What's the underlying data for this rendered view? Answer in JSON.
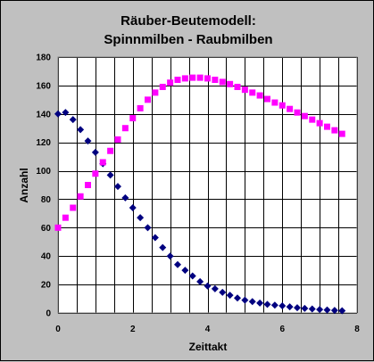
{
  "chart_data": {
    "type": "scatter",
    "title_lines": [
      "Räuber-Beutemodell:",
      "Spinnmilben - Raubmilben"
    ],
    "xlabel": "Zeittakt",
    "ylabel": "Anzahl",
    "xlim": [
      0,
      8
    ],
    "ylim": [
      0,
      180
    ],
    "xticks": [
      0,
      2,
      4,
      6,
      8
    ],
    "yticks": [
      0,
      20,
      40,
      60,
      80,
      100,
      120,
      140,
      160,
      180
    ],
    "x_minor_step": 0.5,
    "grid": true,
    "legend": "none",
    "series": [
      {
        "color": "#000080",
        "marker": "diamond",
        "x": [
          0.0,
          0.2,
          0.4,
          0.6,
          0.8,
          1.0,
          1.2,
          1.4,
          1.6,
          1.8,
          2.0,
          2.2,
          2.4,
          2.6,
          2.8,
          3.0,
          3.2,
          3.4,
          3.6,
          3.8,
          4.0,
          4.2,
          4.4,
          4.6,
          4.8,
          5.0,
          5.2,
          5.4,
          5.6,
          5.8,
          6.0,
          6.2,
          6.4,
          6.6,
          6.8,
          7.0,
          7.2,
          7.4,
          7.6
        ],
        "y": [
          140,
          141,
          136,
          129,
          121,
          113,
          105,
          97,
          89,
          81,
          74,
          67,
          60,
          53,
          46,
          40,
          34,
          30,
          26,
          22,
          19,
          17,
          14.5,
          12.5,
          10.5,
          9,
          8,
          7,
          6,
          5.5,
          5,
          4.3,
          3.7,
          3.2,
          2.8,
          2.4,
          2.1,
          1.8,
          1.6
        ]
      },
      {
        "color": "#ff00ff",
        "marker": "square",
        "x": [
          0.0,
          0.2,
          0.4,
          0.6,
          0.8,
          1.0,
          1.2,
          1.4,
          1.6,
          1.8,
          2.0,
          2.2,
          2.4,
          2.6,
          2.8,
          3.0,
          3.2,
          3.4,
          3.6,
          3.8,
          4.0,
          4.2,
          4.4,
          4.6,
          4.8,
          5.0,
          5.2,
          5.4,
          5.6,
          5.8,
          6.0,
          6.2,
          6.4,
          6.6,
          6.8,
          7.0,
          7.2,
          7.4,
          7.6
        ],
        "y": [
          60,
          67,
          74,
          82,
          90,
          98,
          106,
          114,
          122,
          130,
          137,
          144,
          150,
          155,
          159,
          162,
          164,
          165,
          165.5,
          165.5,
          165,
          164,
          162.5,
          161,
          159,
          157,
          155,
          153,
          150.5,
          148,
          146,
          143.5,
          141,
          138.5,
          136,
          133.5,
          131,
          128.5,
          126
        ]
      }
    ]
  }
}
